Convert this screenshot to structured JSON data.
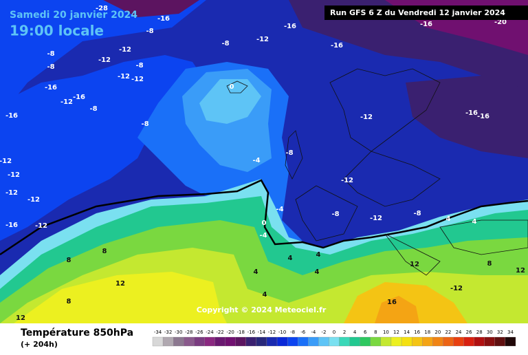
{
  "header": {
    "date": "Samedi 20 janvier 2024",
    "time": "19:00 locale",
    "run": "Run GFS 6 Z du Vendredi 12 janvier 2024"
  },
  "footer": {
    "title": "Température 850hPa",
    "lead": "(+ 204h)",
    "copyright": "Copyright © 2024 Meteociel.fr"
  },
  "legend": {
    "ticks": [
      -34,
      -32,
      -30,
      -28,
      -26,
      -24,
      -22,
      -20,
      -18,
      -16,
      -14,
      -12,
      -10,
      -8,
      -6,
      -4,
      -2,
      0,
      2,
      4,
      6,
      8,
      10,
      12,
      14,
      16,
      18,
      20,
      22,
      24,
      26,
      28,
      30,
      32,
      34
    ],
    "colors": [
      "#d8d8d8",
      "#b0a8b0",
      "#8c7890",
      "#8a5a8c",
      "#7a3c80",
      "#8a2880",
      "#6a1870",
      "#701070",
      "#5c1460",
      "#3a2070",
      "#28287a",
      "#1a2ab0",
      "#0a28d8",
      "#0c44f0",
      "#1a70f8",
      "#3a9cf8",
      "#5ec4f6",
      "#7ae0f0",
      "#3ad8b8",
      "#22c890",
      "#2ec860",
      "#7ad840",
      "#c4e830",
      "#ecf020",
      "#f4e010",
      "#f4c414",
      "#f4a414",
      "#f08414",
      "#ec6414",
      "#e84010",
      "#d82010",
      "#b01010",
      "#881010",
      "#601010",
      "#200808"
    ]
  },
  "map": {
    "labels": [
      -28,
      -16,
      -16,
      -12,
      -8,
      -16,
      -16,
      -20,
      -8,
      -12,
      -8,
      -8,
      -12,
      -8,
      -12,
      -12,
      -16,
      -16,
      -12,
      -8,
      -16,
      -8,
      0,
      -12,
      -16,
      -16,
      -12,
      -12,
      -8,
      -4,
      -12,
      -12,
      -12,
      -16,
      -12,
      -4,
      -8,
      -12,
      -8,
      0,
      -4,
      4,
      4,
      8,
      8,
      4,
      4,
      12,
      8,
      12,
      8,
      12,
      16,
      4,
      4,
      4,
      -12,
      12
    ]
  }
}
